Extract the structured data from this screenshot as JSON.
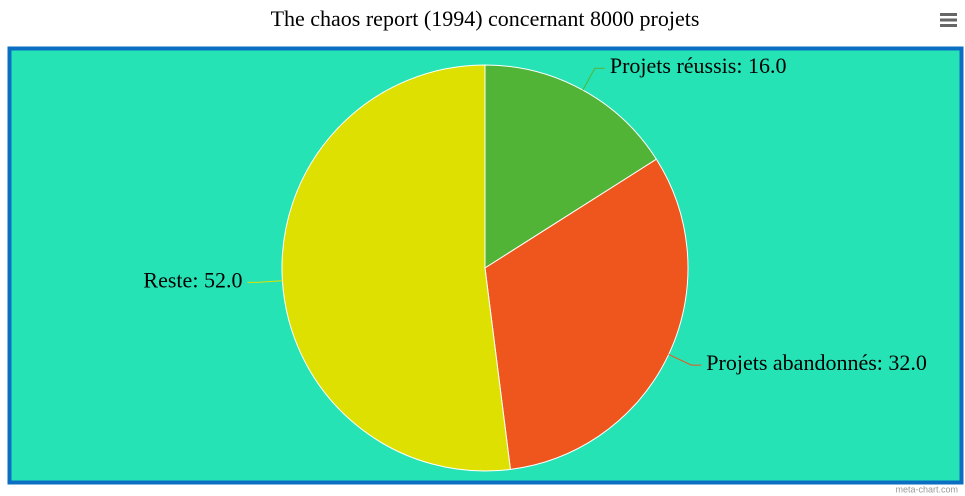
{
  "chart_data": {
    "type": "pie",
    "title": "The chaos report (1994) concernant 8000 projets",
    "categories": [
      "Projets réussis",
      "Projets abandonnés",
      "Reste"
    ],
    "values": [
      16,
      32,
      52
    ],
    "value_labels": [
      "16.0",
      "32.0",
      "52.0"
    ],
    "colors": [
      "#52b436",
      "#ee561d",
      "#dde000"
    ],
    "credit": "meta-chart.com"
  }
}
